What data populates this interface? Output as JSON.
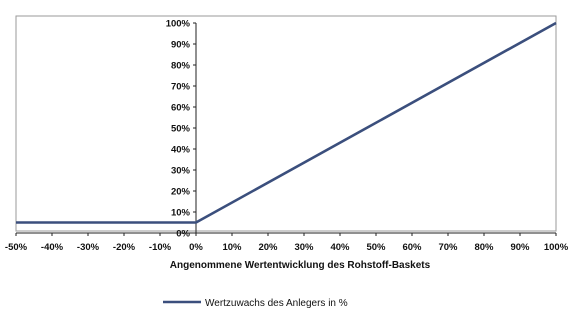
{
  "chart_data": {
    "type": "line",
    "xlabel": "Angenommene Wertentwicklung des Rohstoff-Baskets",
    "ylabel": "",
    "x_tick_labels": [
      "-50%",
      "-40%",
      "-30%",
      "-20%",
      "-10%",
      "0%",
      "10%",
      "20%",
      "30%",
      "40%",
      "50%",
      "60%",
      "70%",
      "80%",
      "90%",
      "100%"
    ],
    "y_tick_labels": [
      "0%",
      "10%",
      "20%",
      "30%",
      "40%",
      "50%",
      "60%",
      "70%",
      "80%",
      "90%",
      "100%"
    ],
    "xlim": [
      -50,
      100
    ],
    "ylim": [
      0,
      100
    ],
    "y_axis_position": "right-at-x-0",
    "grid": false,
    "legend": {
      "position": "bottom-center"
    },
    "series": [
      {
        "name": "Wertzuwachs des Anlegers in %",
        "color": "#3b4f7d",
        "x": [
          -50,
          0,
          100
        ],
        "y": [
          5,
          5,
          100
        ]
      }
    ]
  }
}
